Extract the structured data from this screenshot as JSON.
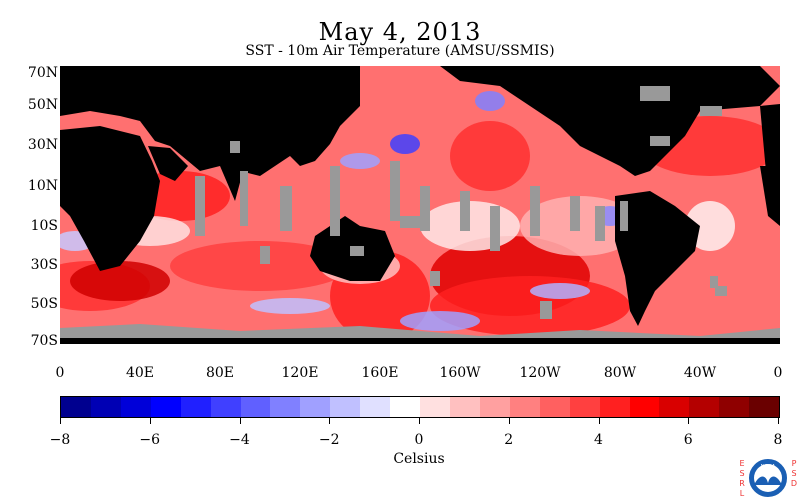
{
  "header": {
    "date": "May 4, 2013",
    "subtitle": "SST - 10m Air Temperature (AMSU/SSMIS)"
  },
  "map": {
    "lat_labels": [
      "70N",
      "50N",
      "30N",
      "10N",
      "10S",
      "30S",
      "50S",
      "70S"
    ],
    "lon_labels": [
      "0",
      "40E",
      "80E",
      "120E",
      "160E",
      "160W",
      "120W",
      "80W",
      "40W",
      "0"
    ],
    "colors": {
      "land": "#000000",
      "no_data": "#999999",
      "ocean_default": "#ff7070"
    }
  },
  "colorbar": {
    "tick_labels": [
      "−8",
      "−6",
      "−4",
      "−2",
      "0",
      "2",
      "4",
      "6",
      "8"
    ],
    "unit_label": "Celsius",
    "range": [
      -8,
      8
    ],
    "colors": [
      "#00008f",
      "#0000b4",
      "#0000d9",
      "#0000ff",
      "#2020ff",
      "#4040ff",
      "#6060ff",
      "#8080ff",
      "#a0a0ff",
      "#c0c0ff",
      "#e0e0ff",
      "#ffffff",
      "#ffe0e0",
      "#ffc0c0",
      "#ffa0a0",
      "#ff8080",
      "#ff6060",
      "#ff4040",
      "#ff2020",
      "#ff0000",
      "#d90000",
      "#b40000",
      "#8f0000",
      "#6a0000",
      "#ffffff",
      "#ffffff",
      "#ffffff",
      "#ffffff"
    ]
  },
  "logo": {
    "left_letters": "ESRL",
    "right_letters": "PSD",
    "agency": "NOAA"
  }
}
